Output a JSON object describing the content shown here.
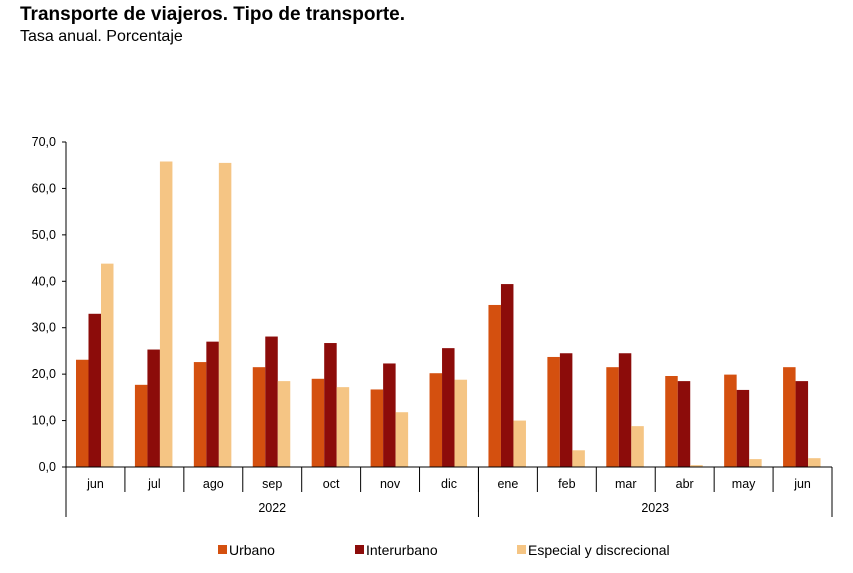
{
  "chart_data": {
    "type": "bar",
    "title": "Transporte de viajeros. Tipo de transporte.",
    "subtitle": "Tasa anual. Porcentaje",
    "categories": [
      "jun",
      "jul",
      "ago",
      "sep",
      "oct",
      "nov",
      "dic",
      "ene",
      "feb",
      "mar",
      "abr",
      "may",
      "jun"
    ],
    "groups": [
      {
        "label": "2022",
        "span": 7
      },
      {
        "label": "2023",
        "span": 6
      }
    ],
    "ylim": [
      0,
      70
    ],
    "yticks": [
      "0,0",
      "10,0",
      "20,0",
      "30,0",
      "40,0",
      "50,0",
      "60,0",
      "70,0"
    ],
    "grid": false,
    "legend_position": "bottom",
    "series": [
      {
        "name": "Urbano",
        "color": "#D4500F",
        "values": [
          23.1,
          17.7,
          22.6,
          21.5,
          19.0,
          16.7,
          20.2,
          34.9,
          23.7,
          21.5,
          19.6,
          19.9,
          21.5
        ]
      },
      {
        "name": "Interurbano",
        "color": "#8C0C0A",
        "values": [
          33.0,
          25.3,
          27.0,
          28.1,
          26.7,
          22.3,
          25.6,
          39.4,
          24.5,
          24.5,
          18.5,
          16.6,
          18.5
        ]
      },
      {
        "name": "Especial y discrecional",
        "color": "#F5C584",
        "values": [
          43.8,
          65.8,
          65.5,
          18.5,
          17.2,
          11.8,
          18.8,
          10.0,
          3.6,
          8.8,
          0.4,
          1.7,
          1.9
        ]
      }
    ]
  }
}
